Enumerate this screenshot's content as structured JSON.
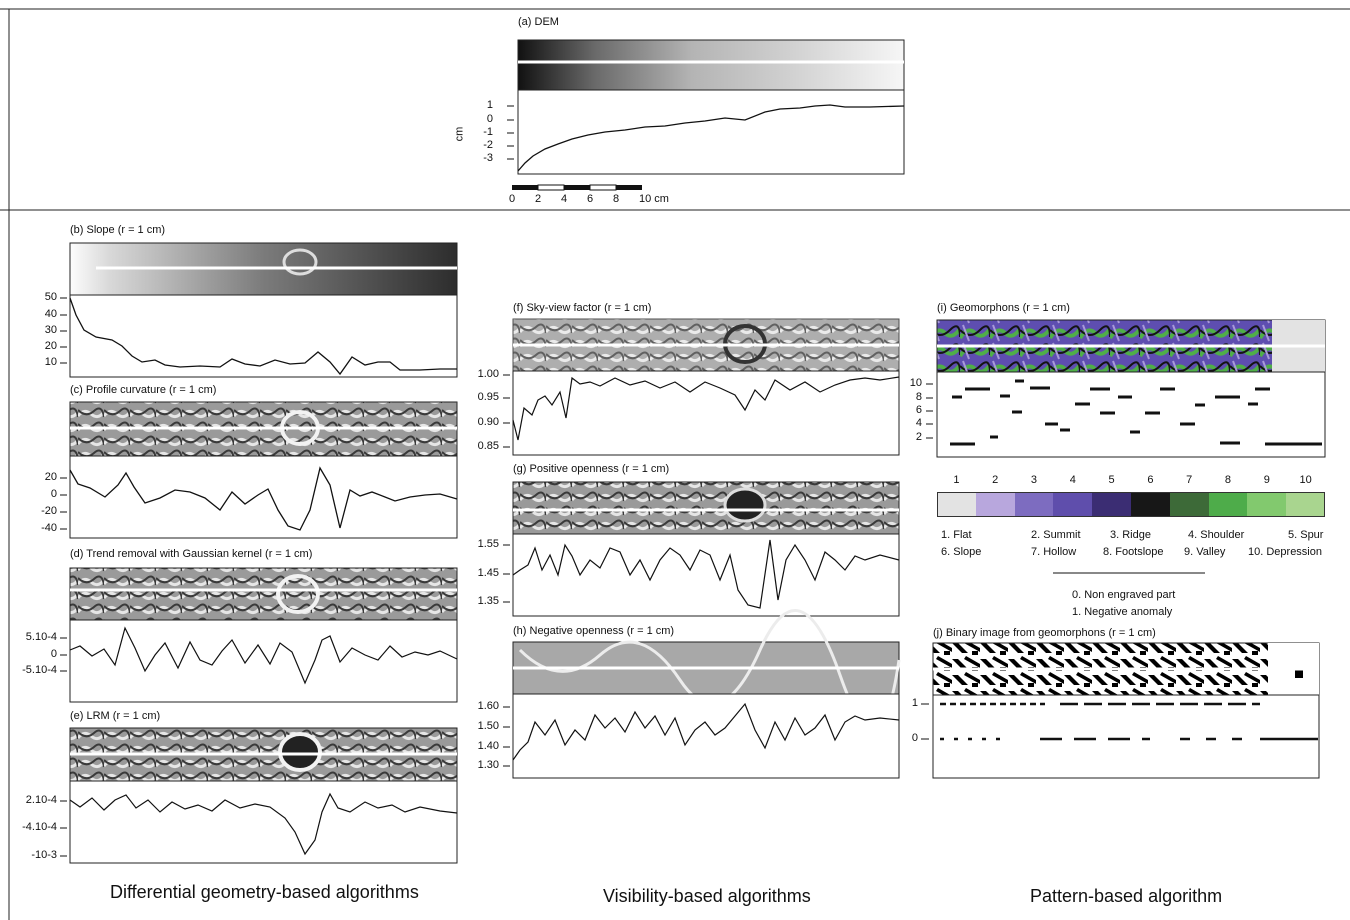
{
  "panels": {
    "a": "(a) DEM",
    "b": "(b) Slope  (r = 1 cm)",
    "c": "(c) Profile curvature (r = 1 cm)",
    "d": "(d) Trend removal with Gaussian kernel (r = 1 cm)",
    "e": "(e) LRM (r = 1 cm)",
    "f": "(f) Sky-view factor (r = 1 cm)",
    "g": "(g) Positive openness  (r = 1 cm)",
    "h": "(h) Negative openness  (r = 1 cm)",
    "i": "(i) Geomorphons (r = 1 cm)",
    "j": "(j) Binary image from geomorphons (r = 1 cm)"
  },
  "dem": {
    "unit": "cm",
    "ticks": [
      "1",
      "0",
      "-1",
      "-2",
      "-3"
    ]
  },
  "scalebar": {
    "labels": [
      "0",
      "2",
      "4",
      "6",
      "8",
      "10 cm"
    ]
  },
  "ticks": {
    "b": [
      "50",
      "40",
      "30",
      "20",
      "10"
    ],
    "c": [
      "20",
      "0",
      "-20",
      "-40"
    ],
    "d": [
      "5.10-4",
      "0",
      "-5.10-4"
    ],
    "e": [
      "2.10-4",
      "-4.10-4",
      "-10-3"
    ],
    "f": [
      "1.00",
      "0.95",
      "0.90",
      "0.85"
    ],
    "g": [
      "1.55",
      "1.45",
      "1.35"
    ],
    "h": [
      "1.60",
      "1.50",
      "1.40",
      "1.30"
    ],
    "i": [
      "10",
      "8",
      "6",
      "4",
      "2"
    ],
    "j": [
      "1",
      "0"
    ]
  },
  "geomorphons": {
    "numbers": [
      "1",
      "2",
      "3",
      "4",
      "5",
      "6",
      "7",
      "8",
      "9",
      "10"
    ],
    "colors": [
      "#e3e3e3",
      "#b8a7dd",
      "#7d6cc0",
      "#5f4eac",
      "#3b2d73",
      "#171717",
      "#3d6a38",
      "#4eac4a",
      "#82c96e",
      "#a9d58f"
    ],
    "legend_row1": [
      "1. Flat",
      "2. Summit",
      "3. Ridge",
      "4. Shoulder",
      "5. Spur"
    ],
    "legend_row2": [
      "6. Slope",
      "7. Hollow",
      "8. Footslope",
      "9. Valley",
      "10. Depression"
    ]
  },
  "binary_legend": [
    "0. Non engraved part",
    "1. Negative anomaly"
  ],
  "captions": [
    "Differential geometry-based algorithms",
    "Visibility-based algorithms",
    "Pattern-based algorithm"
  ]
}
